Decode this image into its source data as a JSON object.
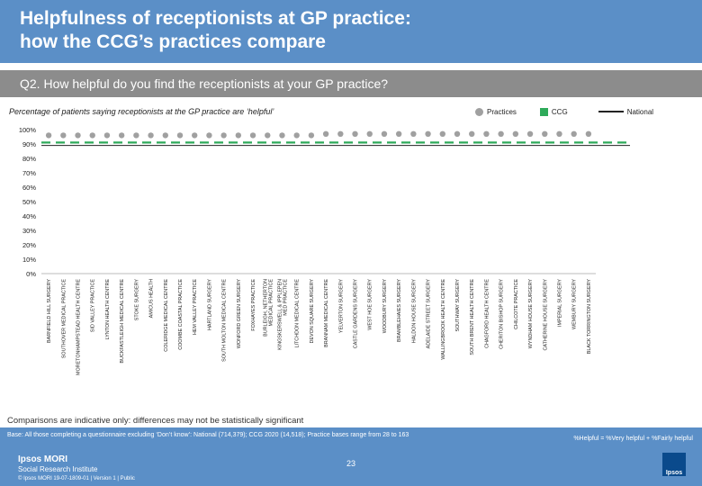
{
  "header": {
    "title_line1": "Helpfulness of receptionists at GP practice:",
    "title_line2": "how the CCG’s practices compare"
  },
  "question": "Q2. How helpful do you find the receptionists at your GP practice?",
  "subtitle": "Percentage of patients saying receptionists at the GP practice are ‘helpful’",
  "legend": {
    "practices": "Practices",
    "ccg": "CCG",
    "national": "National"
  },
  "colors": {
    "practice_marker": "#a0a0a0",
    "ccg_line": "#2eaa5a",
    "national_line": "#222222",
    "header": "#5b8fc7",
    "question_band": "#8c8c8c"
  },
  "chart_data": {
    "type": "scatter",
    "ylim": [
      0,
      100
    ],
    "yticks": [
      "0%",
      "10%",
      "20%",
      "30%",
      "40%",
      "50%",
      "60%",
      "70%",
      "80%",
      "90%",
      "100%"
    ],
    "categories": [
      "BARNFIELD HILL SURGERY",
      "SOUTHOVER MEDICAL PRACTICE",
      "MORETONHAMPSTEAD HEALTH CENTRE",
      "SID VALLEY PRACTICE",
      "LYNTON HEALTH CENTRE",
      "BUCKFASTLEIGH MEDICAL CENTRE",
      "STOKE SURGERY",
      "AMICUS HEALTH",
      "COLERIDGE MEDICAL CENTRE",
      "COOMBE COASTAL PRACTICE",
      "HEM VALLEY PRACTICE",
      "HARTLAND SURGERY",
      "SOUTH MOLTON MEDICAL CENTRE",
      "WONFORD GREEN SURGERY",
      "FOXHAYES PRACTICE",
      "BURLEIGH, NETHERTON MEDICAL PRACTICE",
      "KINGSKERSWELL & IPPLEPEN MED PRACTICE",
      "LITCHDON MEDICAL CENTRE",
      "DEVON SQUARE SURGERY",
      "BRANNAM MEDICAL CENTRE",
      "YELVERTON SURGERY",
      "CASTLE GARDENS SURGERY",
      "WEST HOE SURGERY",
      "WOODBURY SURGERY",
      "BRAMBLEHAIES SURGERY",
      "HALDON HOUSE SURGERY",
      "ADELAIDE STREET SURGERY",
      "WALLINGBROOK HEALTH CENTRE",
      "SOUTHWAY SURGERY",
      "SOUTH BRENT HEALTH CENTRE",
      "CHAGFORD HEALTH CENTRE",
      "CHERITON BISHOP SURGERY",
      "CHILCOTE PRACTICE",
      "WYNDHAM HOUSE SURGERY",
      "CATHERINE HOUSE SURGERY",
      "IMPERIAL SURGERY",
      "WEMBURY SURGERY",
      "BLACK TORRINGTON SURGERY"
    ],
    "series": [
      {
        "name": "Practices",
        "values": [
          96,
          96,
          96,
          96,
          96,
          96,
          96,
          96,
          96,
          96,
          96,
          96,
          96,
          96,
          96,
          96,
          96,
          96,
          96,
          97,
          97,
          97,
          97,
          97,
          97,
          97,
          97,
          97,
          97,
          97,
          97,
          97,
          97,
          97,
          97,
          97,
          97,
          97
        ]
      },
      {
        "name": "CCG",
        "values": [
          91
        ]
      },
      {
        "name": "National",
        "values": [
          89
        ]
      }
    ]
  },
  "caveat": "Comparisons are indicative only: differences may not be statistically significant",
  "base": "Base: All those completing a questionnaire excluding ‘Don’t know’: National (714,379); CCG 2020 (14,518); Practice bases range from 28 to 163",
  "note": "%Helpful = %Very helpful + %Fairly helpful",
  "brand": {
    "name": "Ipsos MORI",
    "sub": "Social Research Institute"
  },
  "footer": "© Ipsos MORI     19-07-1809-01 | Version 1 | Public",
  "page_number": "23",
  "logo_text": "Ipsos"
}
